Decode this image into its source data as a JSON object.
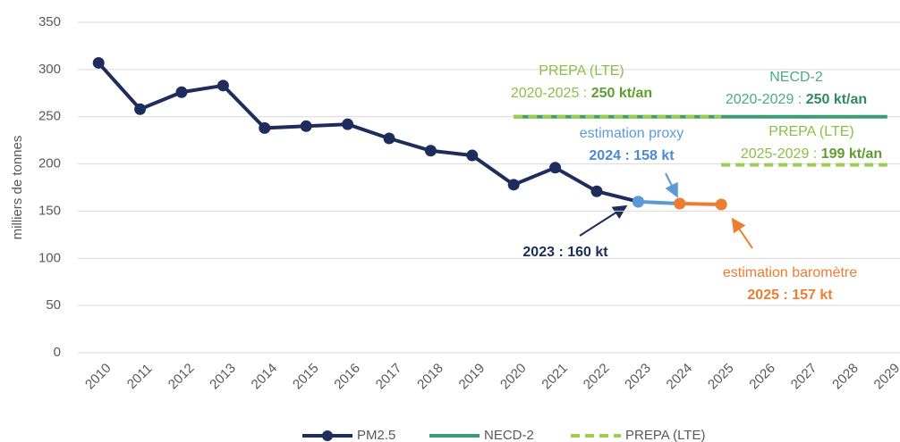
{
  "chart_data": {
    "type": "line",
    "ylabel": "milliers de tonnes",
    "categories": [
      "2010",
      "2011",
      "2012",
      "2013",
      "2014",
      "2015",
      "2016",
      "2017",
      "2018",
      "2019",
      "2020",
      "2021",
      "2022",
      "2023",
      "2024",
      "2025",
      "2026",
      "2027",
      "2028",
      "2029"
    ],
    "ylim": [
      0,
      350
    ],
    "yticks": [
      0,
      50,
      100,
      150,
      200,
      250,
      300,
      350
    ],
    "grid": true,
    "legend": "bottom",
    "series": [
      {
        "name": "PM2.5",
        "color": "#1f2d5c",
        "markers": true,
        "values": [
          307,
          258,
          276,
          283,
          238,
          240,
          242,
          227,
          214,
          209,
          178,
          196,
          171,
          160,
          null,
          null,
          null,
          null,
          null,
          null
        ]
      },
      {
        "name": "NECD-2",
        "color": "#3a9e72",
        "values": [
          null,
          null,
          null,
          null,
          null,
          null,
          null,
          null,
          null,
          null,
          250,
          250,
          250,
          250,
          250,
          250,
          250,
          250,
          250,
          250
        ]
      },
      {
        "name": "PREPA (LTE)",
        "color": "#9acd52",
        "dashed": true,
        "values": [
          null,
          null,
          null,
          null,
          null,
          null,
          null,
          null,
          null,
          null,
          250,
          250,
          250,
          250,
          250,
          250,
          null,
          null,
          null,
          null
        ]
      }
    ],
    "extra_lines": [
      {
        "color": "#9acd52",
        "dashed": true,
        "values": [
          null,
          null,
          null,
          null,
          null,
          null,
          null,
          null,
          null,
          null,
          null,
          null,
          null,
          null,
          null,
          199,
          199,
          199,
          199,
          199
        ]
      },
      {
        "color": "#5b9bd5",
        "markers": true,
        "values": [
          null,
          null,
          null,
          null,
          null,
          null,
          null,
          null,
          null,
          null,
          null,
          null,
          null,
          160,
          158,
          null,
          null,
          null,
          null,
          null
        ]
      },
      {
        "color": "#ed7d31",
        "markers": true,
        "values": [
          null,
          null,
          null,
          null,
          null,
          null,
          null,
          null,
          null,
          null,
          null,
          null,
          null,
          null,
          158,
          157,
          null,
          null,
          null,
          null
        ]
      }
    ],
    "annotations": [
      {
        "color": "#8cbf45",
        "bold_color": "#5e9e2e",
        "lines": [
          [
            "PREPA (LTE)"
          ],
          [
            "2020-2025 : ",
            "250 kt/an"
          ]
        ]
      },
      {
        "color": "#4aab84",
        "bold_color": "#2e8b5e",
        "lines": [
          [
            "NECD-2"
          ],
          [
            "2020-2029 : ",
            "250 kt/an"
          ]
        ]
      },
      {
        "color": "#5b9bd5",
        "bold_color": "#4a8ad4",
        "lines": [
          [
            "estimation proxy"
          ],
          [
            "",
            "2024 : 158 kt"
          ]
        ]
      },
      {
        "color": "#8cbf45",
        "bold_color": "#5e9e2e",
        "lines": [
          [
            "PREPA (LTE)"
          ],
          [
            "2025-2029 : ",
            "199 kt/an"
          ]
        ]
      },
      {
        "color": "#ed7d31",
        "bold_color": "#ed7d31",
        "lines": [
          [
            "estimation baromètre"
          ],
          [
            "",
            "2025 : 157 kt"
          ]
        ]
      },
      {
        "color": "#1f2d5c",
        "bold_color": "#1f2d5c",
        "lines": [
          [
            "",
            "2023 : 160 kt"
          ]
        ]
      }
    ]
  }
}
